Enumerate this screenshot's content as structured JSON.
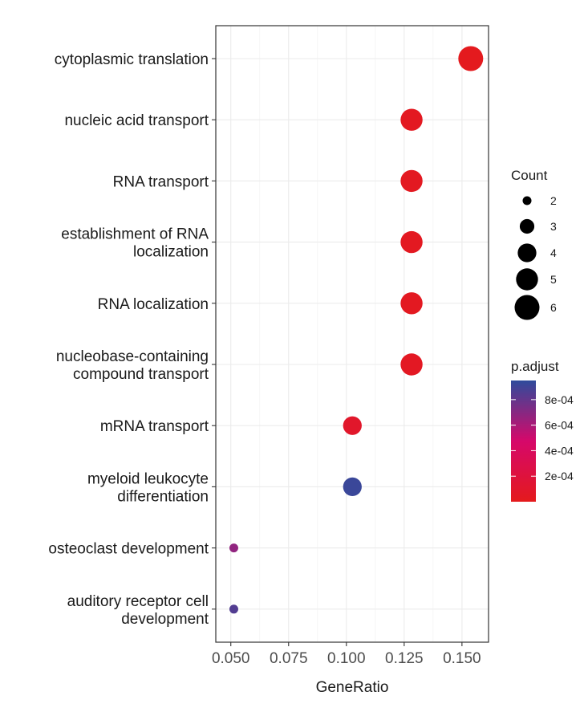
{
  "chart_data": {
    "type": "scatter",
    "subtype": "dotplot",
    "xlabel": "GeneRatio",
    "xlim": [
      0.0435,
      0.1615
    ],
    "xticks": [
      0.05,
      0.075,
      0.1,
      0.125,
      0.15
    ],
    "xtick_labels": [
      "0.050",
      "0.075",
      "0.100",
      "0.125",
      "0.150"
    ],
    "grid": true,
    "categories": [
      {
        "label_lines": [
          "cytoplasmic translation"
        ],
        "gene_ratio": 0.1538,
        "count": 6,
        "p_adjust": 1e-05
      },
      {
        "label_lines": [
          "nucleic acid transport"
        ],
        "gene_ratio": 0.1282,
        "count": 5,
        "p_adjust": 3e-05
      },
      {
        "label_lines": [
          "RNA transport"
        ],
        "gene_ratio": 0.1282,
        "count": 5,
        "p_adjust": 3e-05
      },
      {
        "label_lines": [
          "establishment of RNA",
          "localization"
        ],
        "gene_ratio": 0.1282,
        "count": 5,
        "p_adjust": 3e-05
      },
      {
        "label_lines": [
          "RNA localization"
        ],
        "gene_ratio": 0.1282,
        "count": 5,
        "p_adjust": 3e-05
      },
      {
        "label_lines": [
          "nucleobase-containing",
          "compound transport"
        ],
        "gene_ratio": 0.1282,
        "count": 5,
        "p_adjust": 4e-05
      },
      {
        "label_lines": [
          "mRNA transport"
        ],
        "gene_ratio": 0.1026,
        "count": 4,
        "p_adjust": 9e-05
      },
      {
        "label_lines": [
          "myeloid leukocyte",
          "differentiation"
        ],
        "gene_ratio": 0.1026,
        "count": 4,
        "p_adjust": 0.00092
      },
      {
        "label_lines": [
          "osteoclast development"
        ],
        "gene_ratio": 0.0513,
        "count": 2,
        "p_adjust": 0.00067
      },
      {
        "label_lines": [
          "auditory receptor cell",
          "development"
        ],
        "gene_ratio": 0.0513,
        "count": 2,
        "p_adjust": 0.00085
      }
    ],
    "size_legend": {
      "title": "Count",
      "values": [
        2,
        3,
        4,
        5,
        6
      ],
      "labels": [
        "2",
        "3",
        "4",
        "5",
        "6"
      ]
    },
    "color_legend": {
      "title": "p.adjust",
      "range": [
        0,
        0.00095
      ],
      "low_color": "#e41a1c",
      "mid_color": "#d6086a",
      "high_color": "#2f4b9c",
      "ticks": [
        0.0002,
        0.0004,
        0.0006,
        0.0008
      ],
      "tick_labels": [
        "2e-04",
        "4e-04",
        "6e-04",
        "8e-04"
      ],
      "placement": "right"
    }
  }
}
